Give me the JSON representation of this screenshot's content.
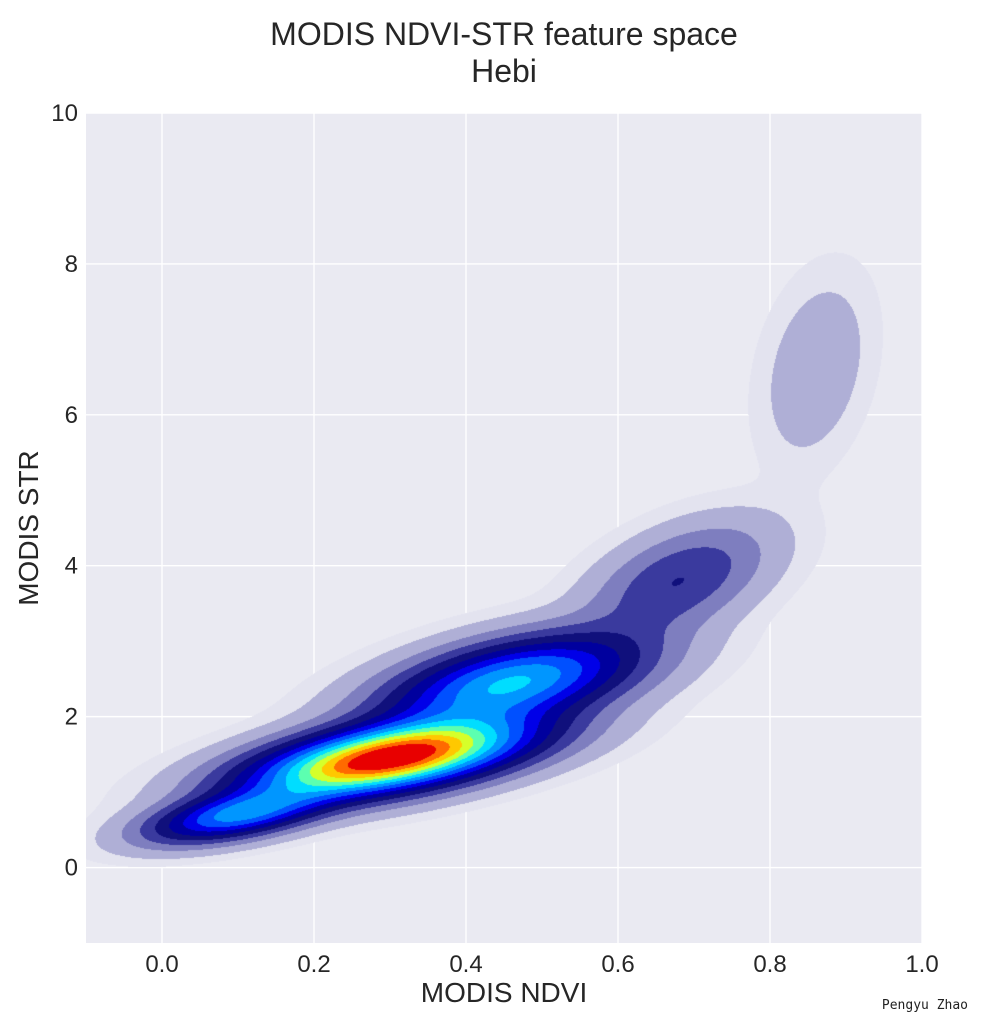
{
  "chart_data": {
    "type": "heatmap",
    "subtype": "kde-density-contour",
    "title": "MODIS NDVI-STR feature space",
    "subtitle": "Hebi",
    "xlabel": "MODIS NDVI",
    "ylabel": "MODIS STR",
    "xlim": [
      -0.1,
      1.0
    ],
    "ylim": [
      -1,
      10
    ],
    "x_ticks": [
      0.0,
      0.2,
      0.4,
      0.6,
      0.8,
      1.0
    ],
    "x_tick_labels": [
      "0.0",
      "0.2",
      "0.4",
      "0.6",
      "0.8",
      "1.0"
    ],
    "y_ticks": [
      0,
      2,
      4,
      6,
      8,
      10
    ],
    "y_tick_labels": [
      "0",
      "2",
      "4",
      "6",
      "8",
      "10"
    ],
    "grid": true,
    "background_color": "#EAEAF2",
    "grid_color": "#FFFFFF",
    "colormap": "jet-with-purple-low",
    "density_components": [
      {
        "mean": [
          0.3,
          1.45
        ],
        "std": [
          0.11,
          0.32
        ],
        "rho": 0.55,
        "weight": 1.0
      },
      {
        "mean": [
          0.46,
          2.45
        ],
        "std": [
          0.1,
          0.38
        ],
        "rho": 0.5,
        "weight": 0.5
      },
      {
        "mean": [
          0.1,
          0.7
        ],
        "std": [
          0.07,
          0.22
        ],
        "rho": 0.55,
        "weight": 0.42
      },
      {
        "mean": [
          0.68,
          3.8
        ],
        "std": [
          0.07,
          0.45
        ],
        "rho": 0.5,
        "weight": 0.13
      },
      {
        "mean": [
          0.86,
          6.6
        ],
        "std": [
          0.04,
          0.7
        ],
        "rho": 0.3,
        "weight": 0.035
      }
    ],
    "contour_levels": [
      0.003,
      0.012,
      0.04,
      0.08,
      0.13,
      0.19,
      0.26,
      0.33,
      0.41,
      0.49,
      0.57,
      0.65,
      0.73,
      0.81,
      0.89
    ],
    "level_colors": [
      "#E3E3EF",
      "#AFAFD6",
      "#7E7EBF",
      "#3A3A9E",
      "#10107C",
      "#00009E",
      "#0000E8",
      "#0050FF",
      "#0096FF",
      "#00DDFF",
      "#5CFFB0",
      "#D6FF2A",
      "#FFC800",
      "#FF6A00",
      "#E80000",
      "#B20000"
    ]
  },
  "credit": "Pengyu Zhao"
}
